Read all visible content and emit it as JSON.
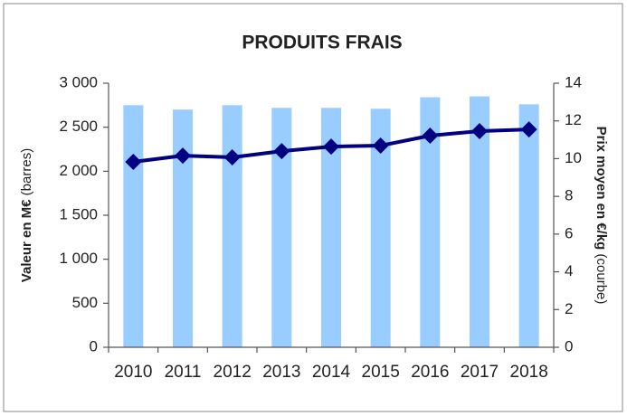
{
  "chart_data": {
    "type": "bar_line",
    "title": "PRODUITS FRAIS",
    "y_label": "Valeur en M€",
    "y_label_note": "(barres)",
    "y2_label": "Prix moyen en €/kg",
    "y2_label_note": "(courbe)",
    "categories": [
      "2010",
      "2011",
      "2012",
      "2013",
      "2014",
      "2015",
      "2016",
      "2017",
      "2018"
    ],
    "series": [
      {
        "type": "bar",
        "color": "#99ccff",
        "values": [
          2750,
          2700,
          2750,
          2720,
          2720,
          2710,
          2840,
          2850,
          2760
        ]
      },
      {
        "type": "line",
        "axis": "y2",
        "color": "#000080",
        "values": [
          9.83,
          10.16,
          10.07,
          10.4,
          10.64,
          10.69,
          11.22,
          11.46,
          11.55
        ]
      }
    ],
    "ylim": [
      0,
      3000
    ],
    "yticks": [
      0,
      500,
      {
        "value": 1000,
        "label": "1 000"
      },
      {
        "value": 1500,
        "label": "1 500"
      },
      {
        "value": 2000,
        "label": "2 000"
      },
      {
        "value": 2500,
        "label": "2 500"
      },
      {
        "value": 3000,
        "label": "3 000"
      }
    ],
    "y2lim": [
      0,
      14
    ],
    "y2ticks": [
      0,
      2,
      4,
      6,
      8,
      10,
      12,
      14
    ],
    "grid": false
  }
}
